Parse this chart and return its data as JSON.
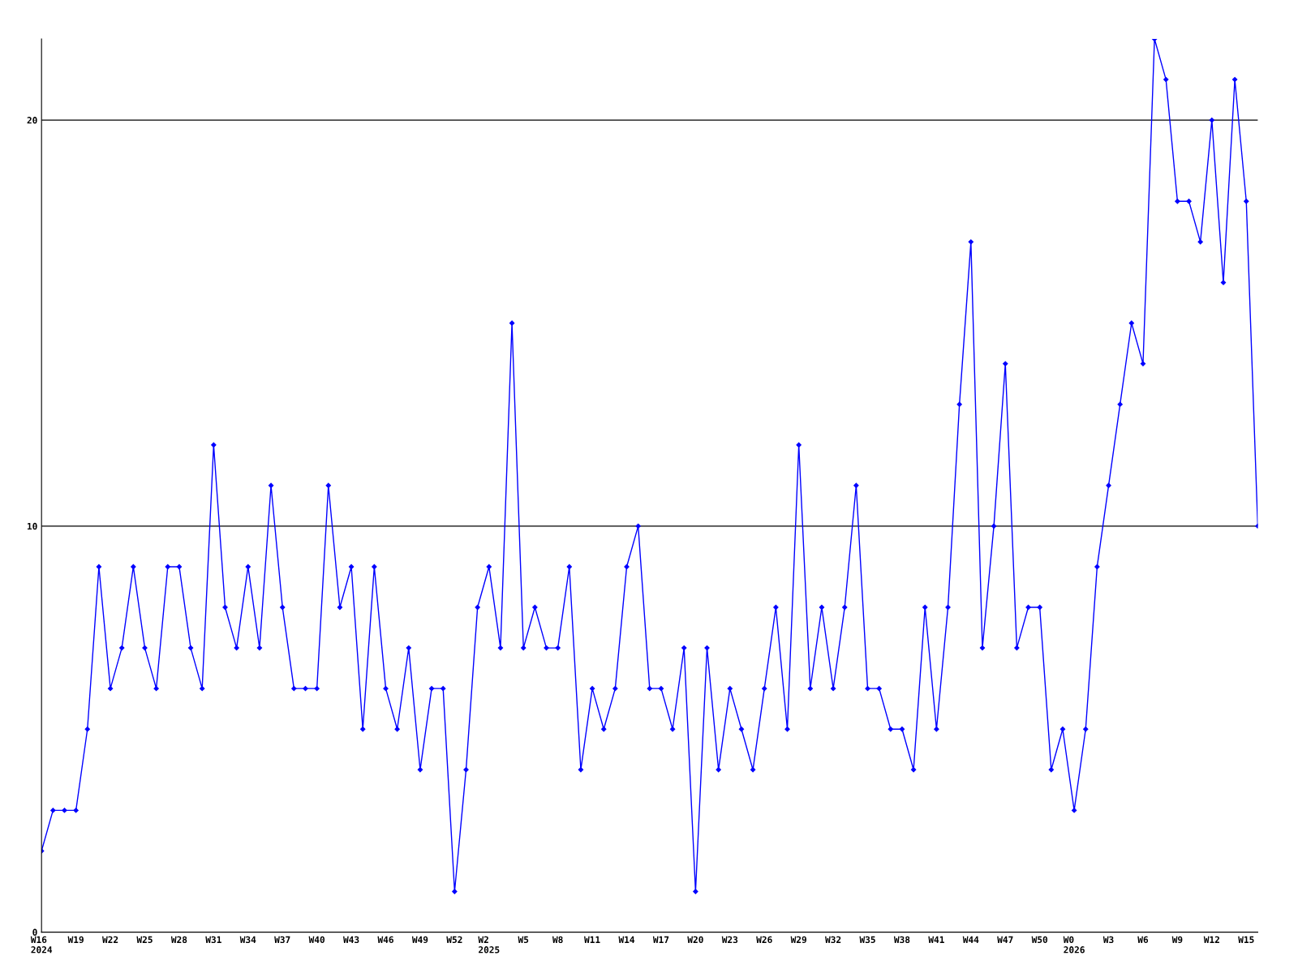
{
  "chart_data": {
    "type": "line",
    "categories": [
      "W16\n2024",
      null,
      null,
      "W19",
      null,
      null,
      "W22",
      null,
      null,
      "W25",
      null,
      null,
      "W28",
      null,
      null,
      "W31",
      null,
      null,
      "W34",
      null,
      null,
      "W37",
      null,
      null,
      "W40",
      null,
      null,
      "W43",
      null,
      null,
      "W46",
      null,
      null,
      "W49",
      null,
      null,
      "W52",
      null,
      null,
      "W2\n2025",
      null,
      null,
      "W5",
      null,
      null,
      "W8",
      null,
      null,
      "W11",
      null,
      null,
      "W14",
      null,
      null,
      "W17",
      null,
      null,
      "W20",
      null,
      null,
      "W23",
      null,
      null,
      "W26",
      null,
      null,
      "W29",
      null,
      null,
      "W32",
      null,
      null,
      "W35",
      null,
      null,
      "W38",
      null,
      null,
      "W41",
      null,
      null,
      "W44",
      null,
      null,
      "W47",
      null,
      null,
      "W50",
      null,
      null,
      "W0\n2026",
      null,
      null,
      "W3",
      null,
      null,
      "W6",
      null,
      null,
      "W9",
      null,
      null,
      "W12",
      null,
      null,
      "W15",
      null
    ],
    "series": [
      {
        "color": "#0000ff",
        "values": [
          2,
          3,
          3,
          3,
          5,
          9,
          6,
          7,
          9,
          7,
          6,
          9,
          9,
          7,
          6,
          12,
          8,
          7,
          9,
          7,
          11,
          8,
          6,
          6,
          6,
          11,
          8,
          9,
          5,
          9,
          6,
          5,
          7,
          4,
          6,
          6,
          1,
          4,
          8,
          9,
          7,
          15,
          7,
          8,
          7,
          7,
          9,
          4,
          6,
          5,
          6,
          9,
          10,
          6,
          6,
          5,
          7,
          1,
          7,
          4,
          6,
          5,
          4,
          6,
          8,
          5,
          12,
          6,
          8,
          6,
          8,
          11,
          6,
          6,
          5,
          5,
          4,
          8,
          5,
          8,
          13,
          17,
          7,
          10,
          14,
          7,
          8,
          8,
          4,
          5,
          3,
          5,
          9,
          11,
          13,
          15,
          14,
          22,
          21,
          18,
          18,
          17,
          20,
          16,
          21,
          18,
          10
        ]
      }
    ],
    "ylim": [
      0,
      22
    ],
    "yticks": [
      0,
      10,
      20
    ],
    "grid": "y",
    "marker": "diamond",
    "line_style": "solid",
    "legend": false
  }
}
